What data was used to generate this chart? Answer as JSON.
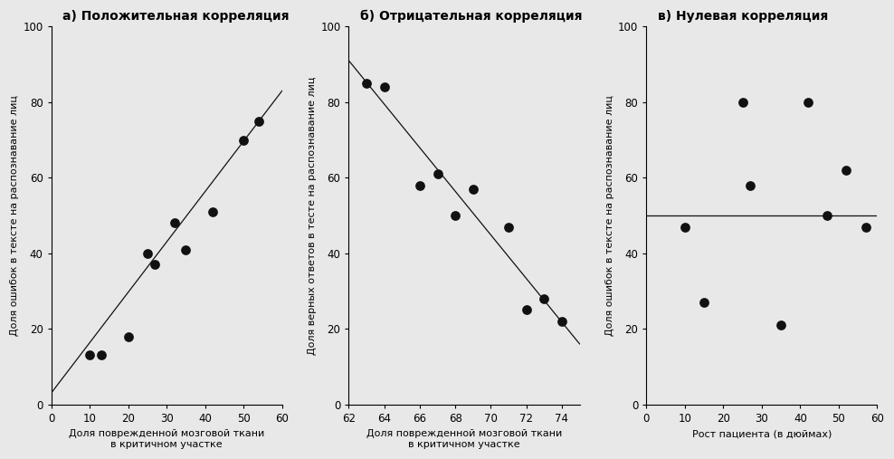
{
  "plot1": {
    "title": "а) Положительная корреляция",
    "xlabel": "Доля поврежденной мозговой ткани\nв критичном участке",
    "ylabel": "Доля ошибок в тексте на распознавание лиц",
    "x": [
      10,
      13,
      20,
      25,
      27,
      32,
      35,
      42,
      50,
      54
    ],
    "y": [
      13,
      13,
      18,
      40,
      37,
      48,
      41,
      51,
      70,
      75
    ],
    "line_x": [
      0,
      60
    ],
    "line_y": [
      3,
      83
    ],
    "xlim": [
      0,
      60
    ],
    "ylim": [
      0,
      100
    ],
    "xticks": [
      0,
      10,
      20,
      30,
      40,
      50,
      60
    ],
    "yticks": [
      0,
      20,
      40,
      60,
      80,
      100
    ]
  },
  "plot2": {
    "title": "б) Отрицательная корреляция",
    "xlabel": "Доля поврежденной мозговой ткани\nв критичном участке",
    "ylabel": "Доля верных ответов в тесте на распознавание лиц",
    "x": [
      63,
      64,
      66,
      67,
      68,
      69,
      71,
      72,
      73,
      74
    ],
    "y": [
      85,
      84,
      58,
      61,
      50,
      57,
      47,
      25,
      28,
      22
    ],
    "line_x": [
      62,
      75
    ],
    "line_y": [
      91,
      16
    ],
    "xlim": [
      62,
      75
    ],
    "ylim": [
      0,
      100
    ],
    "xticks": [
      62,
      64,
      66,
      68,
      70,
      72,
      74
    ],
    "yticks": [
      0,
      20,
      40,
      60,
      80,
      100
    ]
  },
  "plot3": {
    "title": "в) Нулевая корреляция",
    "xlabel": "Рост пациента (в дюймах)",
    "ylabel": "Доля ошибок в тексте на распознавание лиц",
    "x": [
      10,
      15,
      25,
      27,
      35,
      42,
      47,
      52,
      57
    ],
    "y": [
      47,
      27,
      80,
      58,
      21,
      80,
      50,
      62,
      47
    ],
    "line_y": 50,
    "xlim": [
      0,
      60
    ],
    "ylim": [
      0,
      100
    ],
    "xticks": [
      0,
      10,
      20,
      30,
      40,
      50,
      60
    ],
    "yticks": [
      0,
      20,
      40,
      60,
      80,
      100
    ]
  },
  "dot_color": "#111111",
  "line_color": "#111111",
  "bg_color": "#e8e8e8",
  "title_fontsize": 10,
  "label_fontsize": 8,
  "tick_fontsize": 8.5,
  "dot_size": 60
}
